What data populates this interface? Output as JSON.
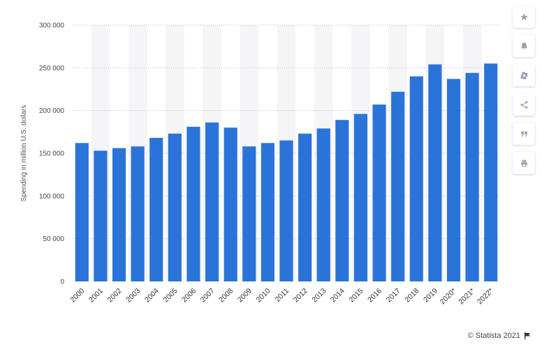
{
  "chart_data": {
    "type": "bar",
    "categories": [
      "2000",
      "2001",
      "2002",
      "2003",
      "2004",
      "2005",
      "2006",
      "2007",
      "2008",
      "2009",
      "2010",
      "2011",
      "2012",
      "2013",
      "2014",
      "2015",
      "2016",
      "2017",
      "2018",
      "2019",
      "2020*",
      "2021*",
      "2022*"
    ],
    "values": [
      162000,
      153000,
      156000,
      158000,
      168000,
      173000,
      181000,
      186000,
      180000,
      158000,
      162000,
      165000,
      173000,
      179000,
      189000,
      196000,
      207000,
      222000,
      240000,
      254000,
      237000,
      244000,
      255000
    ],
    "ylabel": "Spending in million U.S. dollars",
    "xlabel": "",
    "ylim": [
      0,
      300000
    ],
    "yticks": [
      0,
      50000,
      100000,
      150000,
      200000,
      250000,
      300000
    ],
    "ytick_labels": [
      "0",
      "50 000",
      "100 000",
      "150 000",
      "200 000",
      "250 000",
      "300 000"
    ],
    "grid": true,
    "bar_color": "#2a74d9",
    "band_color": "#f5f5f7"
  },
  "toolbar": {
    "buttons": [
      {
        "name": "favorite-button",
        "icon": "star-icon"
      },
      {
        "name": "notification-button",
        "icon": "bell-icon"
      },
      {
        "name": "settings-button",
        "icon": "gear-icon"
      },
      {
        "name": "share-button",
        "icon": "share-icon"
      },
      {
        "name": "cite-button",
        "icon": "quote-icon"
      },
      {
        "name": "print-button",
        "icon": "print-icon"
      }
    ]
  },
  "footer": {
    "credit": "© Statista 2021"
  }
}
